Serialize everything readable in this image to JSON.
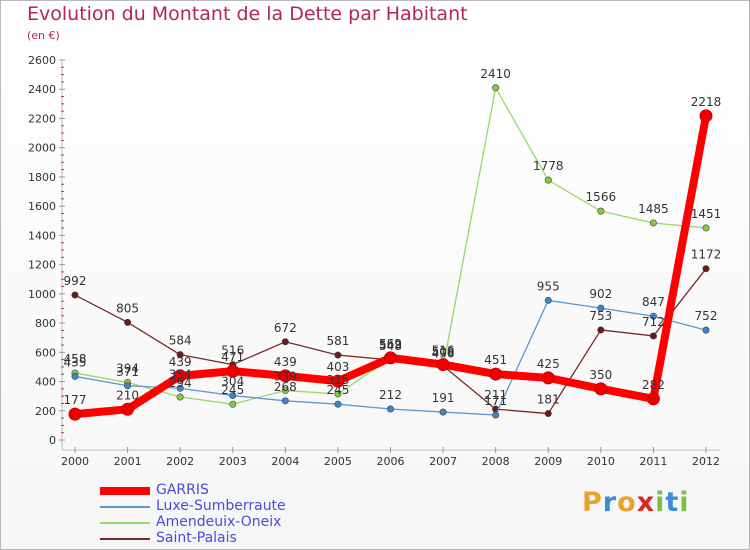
{
  "title": "Evolution du Montant de la Dette par Habitant",
  "subtitle": "(en €)",
  "logo": {
    "text": "Proxiti",
    "letters": [
      {
        "ch": "P",
        "color": "#e8a230"
      },
      {
        "ch": "r",
        "color": "#3b8fd6"
      },
      {
        "ch": "o",
        "color": "#e8a230"
      },
      {
        "ch": "x",
        "color": "#d9261c"
      },
      {
        "ch": "i",
        "color": "#7cc242"
      },
      {
        "ch": "t",
        "color": "#3b8fd6"
      },
      {
        "ch": "i",
        "color": "#7cc242"
      }
    ]
  },
  "chart_data": {
    "type": "line",
    "title": "Evolution du Montant de la Dette par Habitant",
    "subtitle": "(en €)",
    "x": [
      "2000",
      "2001",
      "2002",
      "2003",
      "2004",
      "2005",
      "2006",
      "2007",
      "2008",
      "2009",
      "2010",
      "2011",
      "2012"
    ],
    "ylim": [
      0,
      2600
    ],
    "yticks": [
      0,
      200,
      400,
      600,
      800,
      1000,
      1200,
      1400,
      1600,
      1800,
      2000,
      2200,
      2400,
      2600
    ],
    "grid": false,
    "legend_position": "bottom-left",
    "series": [
      {
        "name": "Saint-Palais",
        "color": "#7a2a2a",
        "marker": "#6a1a1a",
        "values": [
          992,
          805,
          584,
          516,
          672,
          581,
          548,
          508,
          211,
          181,
          753,
          712,
          1172
        ],
        "labels": [
          "992",
          "805",
          "584",
          "516",
          "672",
          "581",
          "548",
          "508",
          "211",
          "181",
          "753",
          "712",
          "1172"
        ]
      },
      {
        "name": "Amendeuix-Oneix",
        "color": "#99d966",
        "marker": "#82cc3c",
        "values": [
          458,
          394,
          294,
          245,
          339,
          315,
          559,
          496,
          2410,
          1778,
          1566,
          1485,
          1451
        ],
        "labels": [
          "458",
          "394",
          "294",
          "245",
          "339",
          "315",
          "559",
          "496",
          "2410",
          "1778",
          "1566",
          "1485",
          "1451"
        ]
      },
      {
        "name": "Luxe-Sumberraute",
        "color": "#5f97cf",
        "marker": "#3a86cc",
        "values": [
          435,
          371,
          354,
          304,
          268,
          245,
          212,
          191,
          171,
          955,
          902,
          847,
          752
        ],
        "labels": [
          "435",
          "371",
          "354",
          "304",
          "268",
          "245",
          "212",
          "191",
          "171",
          "955",
          "902",
          "847",
          "752"
        ]
      },
      {
        "name": "GARRIS",
        "color": "#ff0000",
        "marker": "#ee0000",
        "values": [
          177,
          210,
          439,
          471,
          439,
          403,
          562,
          516,
          451,
          425,
          350,
          282,
          2218
        ],
        "labels": [
          "177",
          "210",
          "439",
          "471",
          "439",
          "403",
          "562",
          "516",
          "451",
          "425",
          "350",
          "282",
          "2218"
        ]
      }
    ],
    "legend": [
      "GARRIS",
      "Luxe-Sumberraute",
      "Amendeuix-Oneix",
      "Saint-Palais"
    ]
  }
}
